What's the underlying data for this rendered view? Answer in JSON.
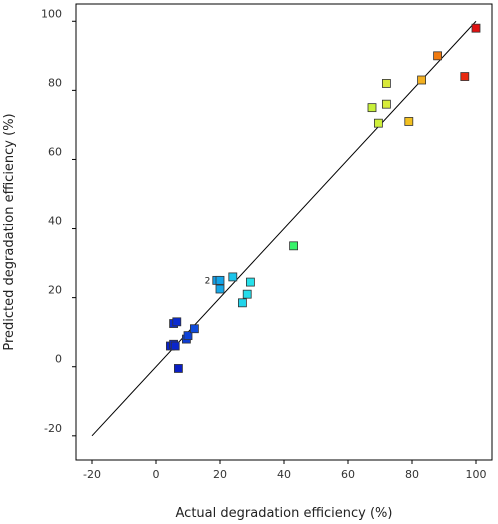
{
  "chart_data": {
    "type": "scatter",
    "title": "",
    "xlabel": "Actual degradation efficiency (%)",
    "ylabel": "Predicted degradation efficiency (%)",
    "xlim": [
      -25,
      105
    ],
    "ylim": [
      -27,
      105
    ],
    "xticks": [
      "-20",
      "0",
      "20",
      "40",
      "60",
      "80",
      "100"
    ],
    "yticks": [
      "-20",
      "0",
      "20",
      "40",
      "60",
      "80",
      "100"
    ],
    "grid": false,
    "legend": "none",
    "fit_line": {
      "from": [
        -20,
        -20
      ],
      "to": [
        100,
        100
      ]
    },
    "annotations": [
      {
        "text": "2",
        "x": 19.5,
        "y": 25
      }
    ],
    "color_scale": [
      "#0000cc",
      "#0b58e0",
      "#13b8e8",
      "#2ee8e0",
      "#37f26a",
      "#c8f03a",
      "#f2c020",
      "#f07a10",
      "#e01010"
    ],
    "points": [
      {
        "x": 4.5,
        "y": 6.0,
        "color": "#0a22c8"
      },
      {
        "x": 5.5,
        "y": 6.5,
        "color": "#0a25cc"
      },
      {
        "x": 6.0,
        "y": 6.0,
        "color": "#0a25cc"
      },
      {
        "x": 5.5,
        "y": 12.5,
        "color": "#0a2ad0"
      },
      {
        "x": 6.5,
        "y": 13.0,
        "color": "#0a2ad0"
      },
      {
        "x": 7.0,
        "y": -0.5,
        "color": "#0a1ec4"
      },
      {
        "x": 9.5,
        "y": 8.0,
        "color": "#0e3ed6"
      },
      {
        "x": 10.0,
        "y": 9.0,
        "color": "#0e42d8"
      },
      {
        "x": 12.0,
        "y": 11.0,
        "color": "#104cdc"
      },
      {
        "x": 19.0,
        "y": 25.0,
        "color": "#14a0e8"
      },
      {
        "x": 20.0,
        "y": 25.0,
        "color": "#14a4e8"
      },
      {
        "x": 20.0,
        "y": 22.5,
        "color": "#16a8e8"
      },
      {
        "x": 24.0,
        "y": 26.0,
        "color": "#1cc4ea"
      },
      {
        "x": 27.0,
        "y": 18.5,
        "color": "#22d4ea"
      },
      {
        "x": 28.5,
        "y": 21.0,
        "color": "#24dcea"
      },
      {
        "x": 29.5,
        "y": 24.5,
        "color": "#26e0ea"
      },
      {
        "x": 43.0,
        "y": 35.0,
        "color": "#37f26a"
      },
      {
        "x": 67.5,
        "y": 75.0,
        "color": "#c8f03a"
      },
      {
        "x": 69.5,
        "y": 70.5,
        "color": "#cff03a"
      },
      {
        "x": 72.0,
        "y": 82.0,
        "color": "#d8e83a"
      },
      {
        "x": 72.0,
        "y": 76.0,
        "color": "#d8ec3a"
      },
      {
        "x": 79.0,
        "y": 71.0,
        "color": "#f2c020"
      },
      {
        "x": 83.0,
        "y": 83.0,
        "color": "#f2b020"
      },
      {
        "x": 88.0,
        "y": 90.0,
        "color": "#f07a10"
      },
      {
        "x": 96.5,
        "y": 84.0,
        "color": "#e82a10"
      },
      {
        "x": 100.0,
        "y": 98.0,
        "color": "#e01010"
      }
    ]
  }
}
